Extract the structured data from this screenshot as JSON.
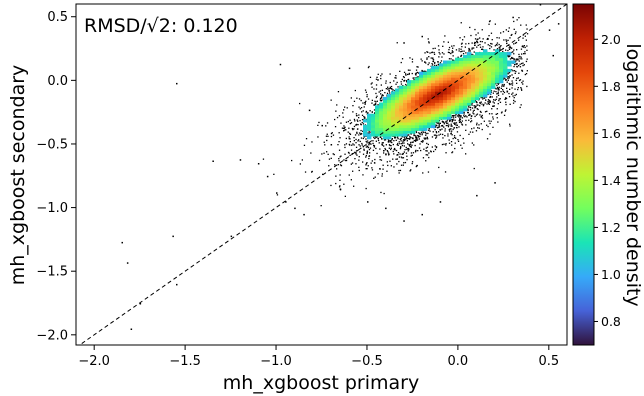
{
  "chart_data": {
    "type": "scatter",
    "subtype": "density-colored scatter (2D histogram) with identity reference line",
    "annotation": "RMSD/√2:  0.120",
    "xlabel": "mh_xgboost primary",
    "ylabel": "mh_xgboost secondary",
    "xlim": [
      -2.1,
      0.6
    ],
    "ylim": [
      -2.08,
      0.6
    ],
    "x_ticks": [
      -2.0,
      -1.5,
      -1.0,
      -0.5,
      0.0,
      0.5
    ],
    "x_tick_labels": [
      "−2.0",
      "−1.5",
      "−1.0",
      "−0.5",
      "0.0",
      "0.5"
    ],
    "y_ticks": [
      -2.0,
      -1.5,
      -1.0,
      -0.5,
      0.0,
      0.5
    ],
    "y_tick_labels": [
      "−2.0",
      "−1.5",
      "−1.0",
      "−0.5",
      "0.0",
      "0.5"
    ],
    "reference_line": {
      "style": "dashed",
      "from": [
        -2.1,
        -2.1
      ],
      "to": [
        0.6,
        0.6
      ]
    },
    "grid": false,
    "colorbar": {
      "label": "logarithmic number density",
      "colormap": "turbo",
      "range": [
        0.7,
        2.15
      ],
      "ticks": [
        0.8,
        1.0,
        1.2,
        1.4,
        1.6,
        1.8,
        2.0
      ],
      "tick_labels": [
        "0.8",
        "1.0",
        "1.2",
        "1.4",
        "1.6",
        "1.8",
        "2.0"
      ]
    },
    "density_core": {
      "description": "dense elongated cloud along the identity line; peak near (-0.1, -0.1)",
      "center": [
        -0.12,
        -0.12
      ],
      "peak_value": 2.1,
      "points": [
        [
          -0.25,
          -0.22
        ],
        [
          -0.1,
          -0.1
        ],
        [
          -0.05,
          -0.05
        ],
        [
          0.0,
          -0.02
        ],
        [
          -0.15,
          -0.12
        ],
        [
          -0.3,
          -0.25
        ],
        [
          -0.4,
          -0.35
        ],
        [
          -0.5,
          -0.45
        ],
        [
          -0.55,
          -0.5
        ],
        [
          0.1,
          0.05
        ],
        [
          0.15,
          0.1
        ],
        [
          0.2,
          0.15
        ],
        [
          -0.2,
          -0.3
        ],
        [
          -0.35,
          -0.45
        ],
        [
          -0.1,
          -0.25
        ],
        [
          -0.05,
          -0.3
        ],
        [
          0.0,
          -0.35
        ],
        [
          -0.45,
          -0.55
        ]
      ]
    },
    "outliers": [
      [
        -1.85,
        -1.27
      ],
      [
        -1.82,
        -1.43
      ],
      [
        -1.75,
        -1.75
      ],
      [
        -1.8,
        -1.95
      ],
      [
        -1.57,
        -1.22
      ],
      [
        -1.55,
        -1.6
      ],
      [
        -1.55,
        -0.02
      ],
      [
        -1.35,
        -0.63
      ],
      [
        -1.25,
        -1.22
      ],
      [
        -1.2,
        -0.62
      ],
      [
        -1.0,
        -0.88
      ],
      [
        -0.95,
        -0.95
      ],
      [
        -0.9,
        -1.0
      ],
      [
        -0.85,
        -1.05
      ],
      [
        -1.05,
        -0.75
      ],
      [
        -1.1,
        -0.65
      ],
      [
        -0.98,
        0.13
      ],
      [
        -0.82,
        -0.23
      ],
      [
        -0.75,
        -0.35
      ],
      [
        -0.7,
        -0.5
      ],
      [
        0.45,
        0.6
      ],
      [
        0.5,
        0.4
      ],
      [
        0.55,
        0.45
      ],
      [
        0.52,
        0.2
      ],
      [
        -0.2,
        0.35
      ],
      [
        -0.3,
        0.3
      ],
      [
        -0.6,
        0.1
      ],
      [
        0.3,
        0.5
      ],
      [
        -0.4,
        -1.0
      ],
      [
        -0.3,
        -1.1
      ],
      [
        -0.2,
        -1.05
      ],
      [
        -0.1,
        -0.95
      ],
      [
        0.1,
        -0.9
      ],
      [
        0.2,
        -0.8
      ],
      [
        -0.5,
        -0.95
      ],
      [
        -0.65,
        -0.85
      ]
    ]
  }
}
